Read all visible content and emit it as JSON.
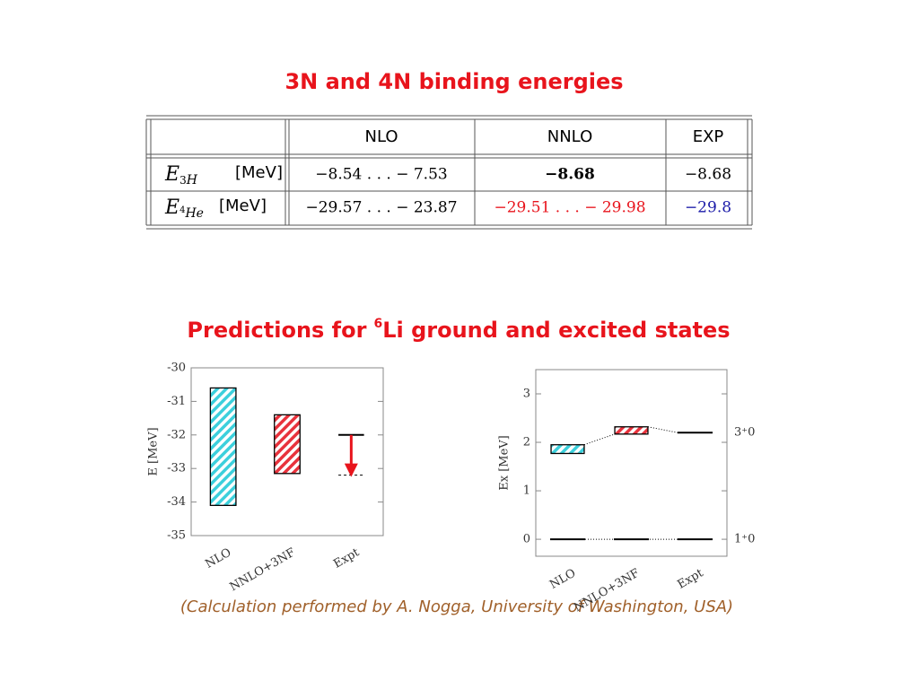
{
  "title": "3N and 4N binding energies",
  "table": {
    "header": [
      "NLO",
      "NNLO",
      "EXP"
    ],
    "rows": [
      {
        "symbol": "E",
        "sub": [
          "3",
          "H"
        ],
        "unit": "[MeV]",
        "cells": [
          "−8.54 . . . − 7.53",
          "−8.68",
          "−8.68"
        ],
        "colors": [
          "#000000",
          "#000000",
          "#000000"
        ],
        "bold": [
          false,
          true,
          false
        ]
      },
      {
        "symbol": "E",
        "sub": [
          "4",
          "He"
        ],
        "unit": "[MeV]",
        "cells": [
          "−29.57 . . . − 23.87",
          "−29.51 . . . − 29.98",
          "−29.8"
        ],
        "colors": [
          "#000000",
          "#e8141c",
          "#1a1aa8"
        ],
        "bold": [
          false,
          false,
          false
        ]
      }
    ]
  },
  "subtitle": {
    "before": "Predictions for",
    "sup": "6",
    "after": "Li ground and excited states"
  },
  "chart_data": [
    {
      "type": "range_bar",
      "ylabel": "E [MeV]",
      "categories": [
        "NLO",
        "NNLO+3NF",
        "Expt"
      ],
      "ranges": [
        [
          -34.1,
          -30.6
        ],
        [
          -33.15,
          -31.4
        ],
        null
      ],
      "colors": [
        "#3cd0dc",
        "#e8323c",
        null
      ],
      "expt": [
        -32.0,
        -33.2
      ],
      "arrow_color": "#e8141c",
      "ylim": [
        -35,
        -30
      ],
      "yticks": [
        -35,
        -34,
        -33,
        -32,
        -31,
        -30
      ]
    },
    {
      "type": "level",
      "ylabel": "Ex [MeV]",
      "categories": [
        "NLO",
        "NNLO+3NF",
        "Expt"
      ],
      "ranges": [
        [
          1.77,
          1.95
        ],
        [
          2.17,
          2.32
        ],
        null
      ],
      "colors": [
        "#3cd0dc",
        "#e8323c",
        null
      ],
      "expt": 2.2,
      "ground": [
        0,
        0,
        0
      ],
      "state_labels": [
        "3⁺0",
        "1⁺0"
      ],
      "ylim": [
        -0.35,
        3.5
      ],
      "yticks": [
        0,
        1,
        2,
        3
      ]
    }
  ],
  "footer": "(Calculation performed by A. Nogga, University of Washington, USA)"
}
